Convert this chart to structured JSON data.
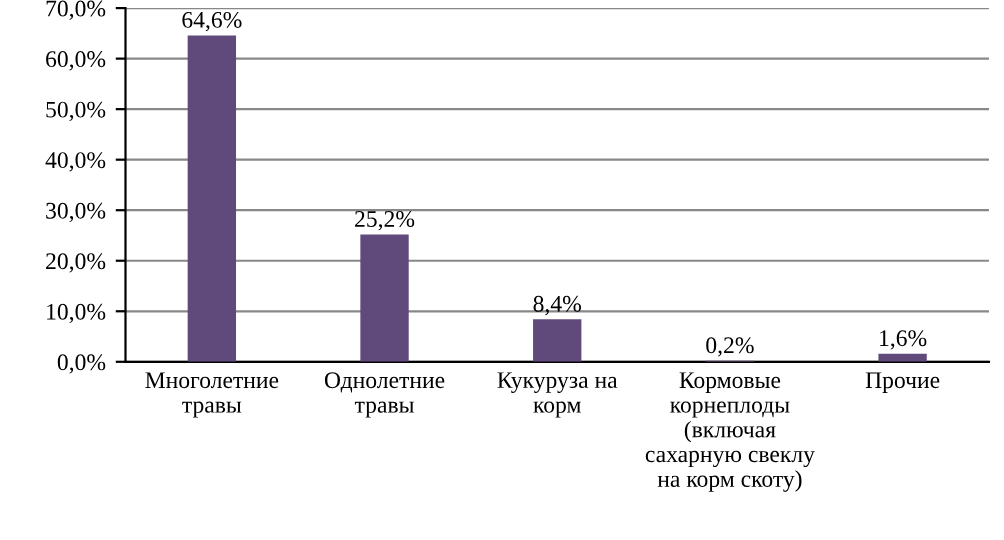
{
  "chart_data": {
    "type": "bar",
    "categories": [
      "Многолетние\nтравы",
      "Однолетние\nтравы",
      "Кукуруза на\nкорм",
      "Кормовые\nкорнеплоды\n(включая\nсахарную свеклу\nна корм скоту)",
      "Прочие"
    ],
    "values": [
      64.6,
      25.2,
      8.4,
      0.2,
      1.6
    ],
    "value_labels": [
      "64,6%",
      "25,2%",
      "8,4%",
      "0,2%",
      "1,6%"
    ],
    "color": "#604a7b",
    "ylim": [
      0,
      70
    ],
    "yticks": [
      {
        "value": 0,
        "label": "0,0%"
      },
      {
        "value": 10,
        "label": "10,0%"
      },
      {
        "value": 20,
        "label": "20,0%"
      },
      {
        "value": 30,
        "label": "30,0%"
      },
      {
        "value": 40,
        "label": "40,0%"
      },
      {
        "value": 50,
        "label": "50,0%"
      },
      {
        "value": 60,
        "label": "60,0%"
      },
      {
        "value": 70,
        "label": "70,0%"
      }
    ],
    "grid": "y",
    "legend": false
  }
}
